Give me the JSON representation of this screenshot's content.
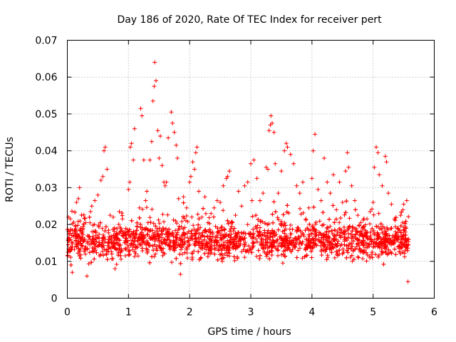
{
  "chart_data": {
    "type": "scatter",
    "title": "Day 186 of 2020, Rate Of TEC Index for receiver pert",
    "xlabel": "GPS time / hours",
    "ylabel": "ROTI / TECUs",
    "xlim": [
      0,
      6
    ],
    "ylim": [
      0,
      0.07
    ],
    "x_ticks": [
      "0",
      "1",
      "2",
      "3",
      "4",
      "5",
      "6"
    ],
    "y_ticks": [
      "0",
      "0.01",
      "0.02",
      "0.03",
      "0.04",
      "0.05",
      "0.06",
      "0.07"
    ],
    "grid": true,
    "marker": "+",
    "color": "#ff0000",
    "x_range_of_samples": [
      0,
      5.58
    ],
    "series": [
      {
        "points": [
          [
            0.02,
            0.022
          ],
          [
            0.05,
            0.0215
          ],
          [
            0.08,
            0.007
          ],
          [
            0.12,
            0.0185
          ],
          [
            0.15,
            0.026
          ],
          [
            0.18,
            0.027
          ],
          [
            0.2,
            0.03
          ],
          [
            0.25,
            0.0185
          ],
          [
            0.3,
            0.0205
          ],
          [
            0.32,
            0.006
          ],
          [
            0.38,
            0.0235
          ],
          [
            0.4,
            0.025
          ],
          [
            0.45,
            0.0265
          ],
          [
            0.5,
            0.028
          ],
          [
            0.55,
            0.032
          ],
          [
            0.58,
            0.033
          ],
          [
            0.6,
            0.04
          ],
          [
            0.62,
            0.041
          ],
          [
            0.65,
            0.035
          ],
          [
            0.7,
            0.0225
          ],
          [
            0.75,
            0.022
          ],
          [
            0.78,
            0.008
          ],
          [
            0.85,
            0.0235
          ],
          [
            0.9,
            0.0215
          ],
          [
            0.95,
            0.0115
          ],
          [
            1.0,
            0.0295
          ],
          [
            1.02,
            0.0315
          ],
          [
            1.03,
            0.041
          ],
          [
            1.05,
            0.042
          ],
          [
            1.08,
            0.0375
          ],
          [
            1.1,
            0.046
          ],
          [
            1.15,
            0.0155
          ],
          [
            1.18,
            0.0245
          ],
          [
            1.2,
            0.0515
          ],
          [
            1.22,
            0.0495
          ],
          [
            1.25,
            0.0375
          ],
          [
            1.28,
            0.0265
          ],
          [
            1.3,
            0.029
          ],
          [
            1.32,
            0.0205
          ],
          [
            1.35,
            0.0375
          ],
          [
            1.38,
            0.0425
          ],
          [
            1.4,
            0.0535
          ],
          [
            1.42,
            0.0575
          ],
          [
            1.43,
            0.064
          ],
          [
            1.45,
            0.059
          ],
          [
            1.48,
            0.0455
          ],
          [
            1.5,
            0.038
          ],
          [
            1.52,
            0.044
          ],
          [
            1.55,
            0.036
          ],
          [
            1.58,
            0.0315
          ],
          [
            1.6,
            0.0305
          ],
          [
            1.62,
            0.0315
          ],
          [
            1.65,
            0.0435
          ],
          [
            1.7,
            0.0505
          ],
          [
            1.72,
            0.0475
          ],
          [
            1.75,
            0.045
          ],
          [
            1.78,
            0.0415
          ],
          [
            1.8,
            0.038
          ],
          [
            1.82,
            0.027
          ],
          [
            1.85,
            0.0065
          ],
          [
            1.9,
            0.0275
          ],
          [
            1.95,
            0.0245
          ],
          [
            2.0,
            0.0315
          ],
          [
            2.02,
            0.033
          ],
          [
            2.05,
            0.037
          ],
          [
            2.08,
            0.035
          ],
          [
            2.1,
            0.0395
          ],
          [
            2.12,
            0.041
          ],
          [
            2.15,
            0.029
          ],
          [
            2.2,
            0.022
          ],
          [
            2.25,
            0.0275
          ],
          [
            2.3,
            0.0205
          ],
          [
            2.35,
            0.023
          ],
          [
            2.4,
            0.0245
          ],
          [
            2.45,
            0.0265
          ],
          [
            2.5,
            0.026
          ],
          [
            2.55,
            0.0305
          ],
          [
            2.6,
            0.0325
          ],
          [
            2.62,
            0.033
          ],
          [
            2.65,
            0.0345
          ],
          [
            2.7,
            0.0205
          ],
          [
            2.75,
            0.0225
          ],
          [
            2.8,
            0.029
          ],
          [
            2.85,
            0.025
          ],
          [
            2.9,
            0.0305
          ],
          [
            2.95,
            0.0315
          ],
          [
            3.0,
            0.0365
          ],
          [
            3.02,
            0.0265
          ],
          [
            3.05,
            0.0375
          ],
          [
            3.1,
            0.0325
          ],
          [
            3.15,
            0.0265
          ],
          [
            3.2,
            0.0285
          ],
          [
            3.25,
            0.0355
          ],
          [
            3.28,
            0.035
          ],
          [
            3.3,
            0.0455
          ],
          [
            3.32,
            0.047
          ],
          [
            3.33,
            0.0495
          ],
          [
            3.35,
            0.0475
          ],
          [
            3.38,
            0.045
          ],
          [
            3.4,
            0.0365
          ],
          [
            3.45,
            0.0285
          ],
          [
            3.5,
            0.0345
          ],
          [
            3.55,
            0.04
          ],
          [
            3.58,
            0.042
          ],
          [
            3.6,
            0.041
          ],
          [
            3.65,
            0.039
          ],
          [
            3.7,
            0.0365
          ],
          [
            3.75,
            0.0305
          ],
          [
            3.8,
            0.0285
          ],
          [
            3.85,
            0.0315
          ],
          [
            3.9,
            0.0215
          ],
          [
            3.95,
            0.0245
          ],
          [
            4.0,
            0.0325
          ],
          [
            4.02,
            0.04
          ],
          [
            4.05,
            0.0445
          ],
          [
            4.1,
            0.0295
          ],
          [
            4.15,
            0.0265
          ],
          [
            4.2,
            0.038
          ],
          [
            4.25,
            0.0315
          ],
          [
            4.3,
            0.0285
          ],
          [
            4.35,
            0.0335
          ],
          [
            4.4,
            0.024
          ],
          [
            4.45,
            0.0315
          ],
          [
            4.5,
            0.026
          ],
          [
            4.55,
            0.0345
          ],
          [
            4.58,
            0.0395
          ],
          [
            4.6,
            0.0355
          ],
          [
            4.65,
            0.0305
          ],
          [
            4.7,
            0.0265
          ],
          [
            4.75,
            0.0225
          ],
          [
            4.8,
            0.0205
          ],
          [
            4.85,
            0.0195
          ],
          [
            4.9,
            0.0215
          ],
          [
            4.95,
            0.0235
          ],
          [
            5.0,
            0.026
          ],
          [
            5.02,
            0.0355
          ],
          [
            5.05,
            0.041
          ],
          [
            5.08,
            0.0395
          ],
          [
            5.1,
            0.0335
          ],
          [
            5.15,
            0.0305
          ],
          [
            5.2,
            0.0385
          ],
          [
            5.22,
            0.037
          ],
          [
            5.25,
            0.0285
          ],
          [
            5.3,
            0.0255
          ],
          [
            5.35,
            0.0215
          ],
          [
            5.4,
            0.019
          ],
          [
            5.45,
            0.0225
          ],
          [
            5.5,
            0.0255
          ],
          [
            5.55,
            0.0265
          ],
          [
            5.57,
            0.0045
          ]
        ]
      }
    ]
  }
}
